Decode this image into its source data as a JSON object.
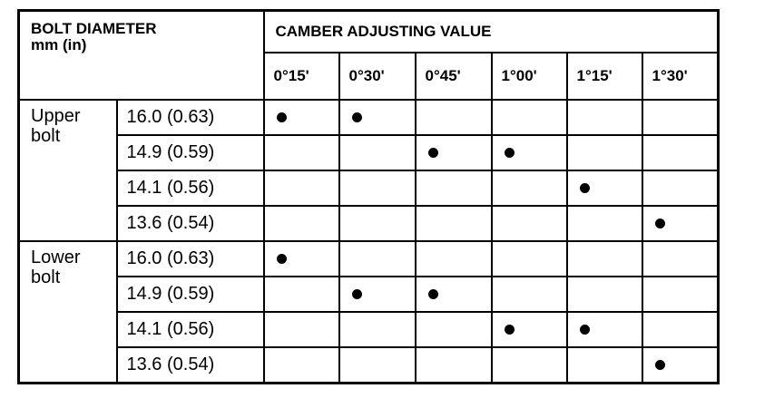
{
  "header": {
    "bolt_diameter": "BOLT DIAMETER",
    "unit": "mm (in)",
    "camber": "CAMBER ADJUSTING VALUE",
    "values": [
      "0°15'",
      "0°30'",
      "0°45'",
      "1°00'",
      "1°15'",
      "1°30'"
    ]
  },
  "groups": [
    {
      "label": "Upper bolt",
      "rows": [
        {
          "diameter": "16.0 (0.63)",
          "marks": [
            true,
            true,
            false,
            false,
            false,
            false
          ]
        },
        {
          "diameter": "14.9 (0.59)",
          "marks": [
            false,
            false,
            true,
            true,
            false,
            false
          ]
        },
        {
          "diameter": "14.1 (0.56)",
          "marks": [
            false,
            false,
            false,
            false,
            true,
            false
          ]
        },
        {
          "diameter": "13.6 (0.54)",
          "marks": [
            false,
            false,
            false,
            false,
            false,
            true
          ]
        }
      ]
    },
    {
      "label": "Lower bolt",
      "rows": [
        {
          "diameter": "16.0 (0.63)",
          "marks": [
            true,
            false,
            false,
            false,
            false,
            false
          ]
        },
        {
          "diameter": "14.9 (0.59)",
          "marks": [
            false,
            true,
            true,
            false,
            false,
            false
          ]
        },
        {
          "diameter": "14.1 (0.56)",
          "marks": [
            false,
            false,
            false,
            true,
            true,
            false
          ]
        },
        {
          "diameter": "13.6 (0.54)",
          "marks": [
            false,
            false,
            false,
            false,
            false,
            true
          ]
        }
      ]
    }
  ],
  "mark_icon": "filled-circle-bullet"
}
